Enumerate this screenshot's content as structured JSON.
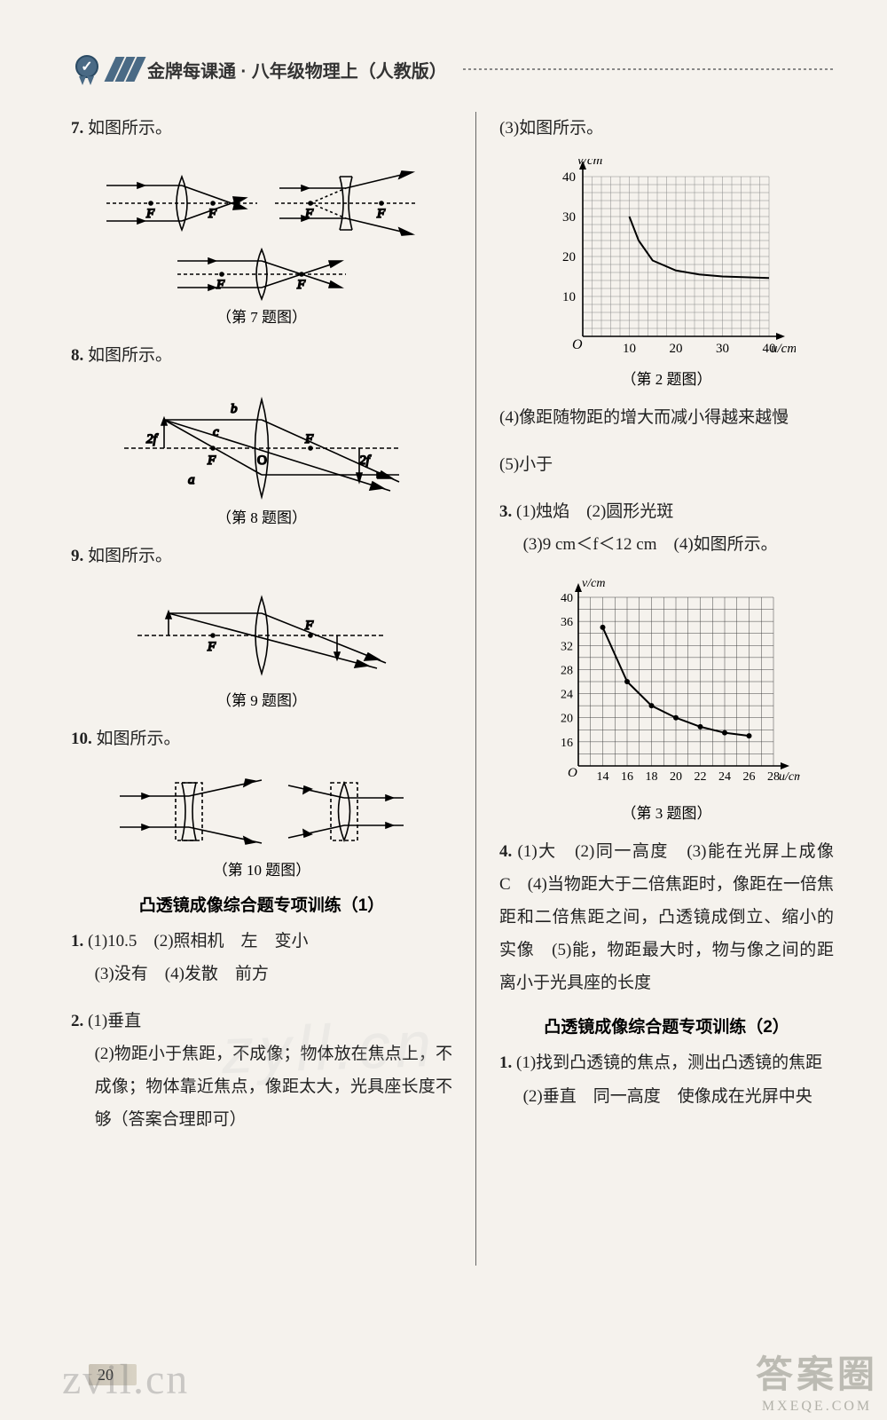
{
  "header": {
    "title": "金牌每课通 · 八年级物理上（人教版）"
  },
  "left": {
    "q7": {
      "num": "7.",
      "text": "如图所示。",
      "caption": "（第 7 题图）"
    },
    "q8": {
      "num": "8.",
      "text": "如图所示。",
      "caption": "（第 8 题图）",
      "labels": {
        "a": "a",
        "b": "b",
        "c": "c",
        "O": "O",
        "F": "F",
        "Fn": "F",
        "tf": "2f",
        "tfn": "2f"
      }
    },
    "q9": {
      "num": "9.",
      "text": "如图所示。",
      "caption": "（第 9 题图）"
    },
    "q10": {
      "num": "10.",
      "text": "如图所示。",
      "caption": "（第 10 题图）"
    },
    "section1": "凸透镜成像综合题专项训练（1）",
    "a1": {
      "num": "1.",
      "p1": "(1)10.5　(2)照相机　左　变小",
      "p2": "(3)没有　(4)发散　前方"
    },
    "a2": {
      "num": "2.",
      "p1": "(1)垂直",
      "p2": "(2)物距小于焦距，不成像；物体放在焦点上，不成像；物体靠近焦点，像距太大，光具座长度不够（答案合理即可）"
    }
  },
  "right": {
    "q2fig": {
      "intro": "(3)如图所示。",
      "caption": "（第 2 题图）",
      "ylabel": "v/cm",
      "xlabel": "u/cm",
      "O": "O",
      "chart": {
        "type": "line",
        "xlim": [
          0,
          40
        ],
        "ylim": [
          0,
          40
        ],
        "xtick_step": 10,
        "ytick_step": 10,
        "subgrid_step": 2,
        "background_color": "#f5f2ed",
        "grid_color": "#555555",
        "subgrid_color": "#888888",
        "line_color": "#000000",
        "line_width": 2,
        "points_u": [
          10,
          12,
          15,
          20,
          25,
          30,
          35,
          40
        ],
        "points_v": [
          30,
          24,
          19,
          16.5,
          15.5,
          15,
          14.8,
          14.6
        ]
      },
      "p4": "(4)像距随物距的增大而减小得越来越慢",
      "p5": "(5)小于"
    },
    "a3": {
      "num": "3.",
      "p1": "(1)烛焰　(2)圆形光斑",
      "p2": "(3)9 cm＜f＜12 cm　(4)如图所示。",
      "caption": "（第 3 题图）",
      "chart": {
        "type": "line",
        "ylabel": "v/cm",
        "xlabel": "u/cm",
        "O": "O",
        "xlim": [
          12,
          28
        ],
        "ylim": [
          12,
          40
        ],
        "xticks": [
          14,
          16,
          18,
          20,
          22,
          24,
          26,
          28
        ],
        "yticks": [
          16,
          20,
          24,
          28,
          32,
          36,
          40
        ],
        "subgrid_x": 1,
        "subgrid_y": 2,
        "grid_color": "#444444",
        "background_color": "#f5f2ed",
        "line_color": "#000000",
        "line_width": 2,
        "points_u": [
          14,
          16,
          18,
          20,
          22,
          24,
          26
        ],
        "points_v": [
          35,
          26,
          22,
          20,
          18.5,
          17.5,
          17
        ],
        "marker": "dot",
        "marker_size": 3,
        "marker_color": "#000000"
      }
    },
    "a4": {
      "num": "4.",
      "text": "(1)大　(2)同一高度　(3)能在光屏上成像　C　(4)当物距大于二倍焦距时，像距在一倍焦距和二倍焦距之间，凸透镜成倒立、缩小的实像　(5)能，物距最大时，物与像之间的距离小于光具座的长度"
    },
    "section2": "凸透镜成像综合题专项训练（2）",
    "b1": {
      "num": "1.",
      "p1": "(1)找到凸透镜的焦点，测出凸透镜的焦距",
      "p2": "(2)垂直　同一高度　使像成在光屏中央"
    }
  },
  "footer": {
    "page": "20"
  },
  "watermarks": {
    "wm1": "zvil.cn",
    "wm_overlay": "zyll.cn",
    "wm2a": "答案圈",
    "wm2b": "MXEQE.COM"
  }
}
